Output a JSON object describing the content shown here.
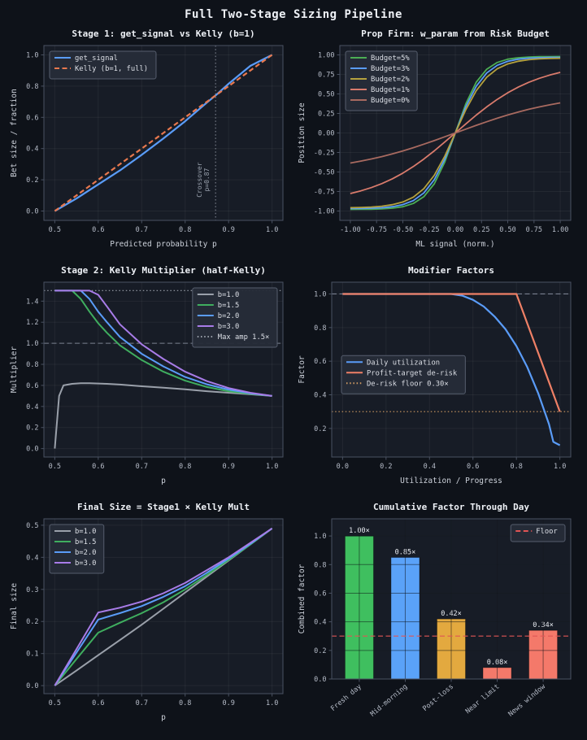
{
  "page": {
    "title": "Full Two-Stage Sizing Pipeline",
    "colors": {
      "figure_bg": "#0e1219",
      "axes_bg": "#171c26",
      "spine": "#4a5262",
      "grid": "rgba(255,255,255,0.055)",
      "tick_text": "#b6bcc8",
      "label_text": "#cdd2db",
      "title_text": "#eef1f6",
      "legend_bg": "#262c38",
      "legend_border": "#5a6272",
      "legend_text": "#dcdfe6",
      "annotation_text": "#9aa2ae"
    }
  },
  "chart_data": [
    {
      "type": "line",
      "title": "Stage 1: get_signal vs Kelly (b=1)",
      "xlabel": "Predicted probability p",
      "ylabel": "Bet size / fraction",
      "xlim": [
        0.475,
        1.025
      ],
      "ylim": [
        -0.06,
        1.06
      ],
      "xticks": [
        0.5,
        0.6,
        0.7,
        0.8,
        0.9,
        1.0
      ],
      "xtick_labels": [
        "0.5",
        "0.6",
        "0.7",
        "0.8",
        "0.9",
        "1.0"
      ],
      "yticks": [
        0.0,
        0.2,
        0.4,
        0.6,
        0.8,
        1.0
      ],
      "ytick_labels": [
        "0.0",
        "0.2",
        "0.4",
        "0.6",
        "0.8",
        "1.0"
      ],
      "legend_pos": "top-left",
      "x": [
        0.5,
        0.55,
        0.6,
        0.65,
        0.7,
        0.75,
        0.8,
        0.85,
        0.87,
        0.9,
        0.95,
        1.0
      ],
      "series": [
        {
          "name": "get_signal",
          "color": "#5a9cf8",
          "dash": "solid",
          "width": 2.2,
          "y": [
            0,
            0.08,
            0.17,
            0.26,
            0.36,
            0.465,
            0.575,
            0.695,
            0.74,
            0.815,
            0.93,
            1.0
          ]
        },
        {
          "name": "Kelly (b=1, full)",
          "color": "#e8784e",
          "dash": "dashed",
          "width": 2.2,
          "y": [
            0,
            0.1,
            0.2,
            0.3,
            0.4,
            0.5,
            0.6,
            0.7,
            0.74,
            0.8,
            0.9,
            1.0
          ]
        }
      ],
      "vline": {
        "x": 0.87,
        "color": "#8a909c",
        "labels": [
          "Crossover",
          "p=0.87"
        ],
        "label_y": 0.2
      }
    },
    {
      "type": "line",
      "title": "Prop Firm: w_param from Risk Budget",
      "xlabel": "ML signal (norm.)",
      "ylabel": "Position size",
      "xlim": [
        -1.1,
        1.1
      ],
      "ylim": [
        -1.12,
        1.12
      ],
      "xticks": [
        -1,
        -0.75,
        -0.5,
        -0.25,
        0,
        0.25,
        0.5,
        0.75,
        1
      ],
      "xtick_labels": [
        "-1.00",
        "-0.75",
        "-0.50",
        "-0.25",
        "0.00",
        "0.25",
        "0.50",
        "0.75",
        "1.00"
      ],
      "yticks": [
        -1,
        -0.75,
        -0.5,
        -0.25,
        0,
        0.25,
        0.5,
        0.75,
        1
      ],
      "ytick_labels": [
        "-1.00",
        "-0.75",
        "-0.50",
        "-0.25",
        "0.00",
        "0.25",
        "0.50",
        "0.75",
        "1.00"
      ],
      "legend_pos": "top-left",
      "x": [
        -1,
        -0.9,
        -0.8,
        -0.7,
        -0.6,
        -0.5,
        -0.4,
        -0.3,
        -0.2,
        -0.1,
        0,
        0.1,
        0.2,
        0.3,
        0.4,
        0.5,
        0.6,
        0.7,
        0.8,
        0.9,
        1
      ],
      "series": [
        {
          "name": "Budget=5%",
          "color": "#4cae54",
          "dash": "solid",
          "width": 1.8,
          "y": [
            -0.979,
            -0.978,
            -0.977,
            -0.973,
            -0.964,
            -0.945,
            -0.903,
            -0.817,
            -0.651,
            -0.372,
            0,
            0.372,
            0.651,
            0.817,
            0.903,
            0.945,
            0.964,
            0.973,
            0.977,
            0.978,
            0.979
          ]
        },
        {
          "name": "Budget=3%",
          "color": "#5a9cf8",
          "dash": "solid",
          "width": 1.8,
          "y": [
            -0.968,
            -0.967,
            -0.964,
            -0.958,
            -0.945,
            -0.918,
            -0.867,
            -0.769,
            -0.598,
            -0.335,
            0,
            0.335,
            0.598,
            0.769,
            0.867,
            0.918,
            0.945,
            0.958,
            0.964,
            0.967,
            0.968
          ]
        },
        {
          "name": "Budget=2%",
          "color": "#b5a23e",
          "dash": "solid",
          "width": 1.8,
          "y": [
            -0.957,
            -0.954,
            -0.949,
            -0.939,
            -0.919,
            -0.885,
            -0.822,
            -0.715,
            -0.542,
            -0.297,
            0,
            0.297,
            0.542,
            0.715,
            0.822,
            0.885,
            0.919,
            0.939,
            0.949,
            0.954,
            0.957
          ]
        },
        {
          "name": "Budget=1%",
          "color": "#d97b6c",
          "dash": "solid",
          "width": 1.8,
          "y": [
            -0.776,
            -0.742,
            -0.7,
            -0.649,
            -0.588,
            -0.515,
            -0.43,
            -0.334,
            -0.229,
            -0.116,
            0,
            0.116,
            0.229,
            0.334,
            0.43,
            0.515,
            0.588,
            0.649,
            0.7,
            0.742,
            0.776
          ]
        },
        {
          "name": "Budget=0%",
          "color": "#a86a60",
          "dash": "solid",
          "width": 1.8,
          "y": [
            -0.385,
            -0.361,
            -0.333,
            -0.303,
            -0.268,
            -0.23,
            -0.189,
            -0.144,
            -0.098,
            -0.049,
            0,
            0.049,
            0.098,
            0.144,
            0.189,
            0.23,
            0.268,
            0.303,
            0.333,
            0.361,
            0.385
          ]
        }
      ]
    },
    {
      "type": "line",
      "title": "Stage 2: Kelly Multiplier (half-Kelly)",
      "xlabel": "p",
      "ylabel": "Multiplier",
      "xlim": [
        0.475,
        1.025
      ],
      "ylim": [
        -0.08,
        1.58
      ],
      "xticks": [
        0.5,
        0.6,
        0.7,
        0.8,
        0.9,
        1.0
      ],
      "xtick_labels": [
        "0.5",
        "0.6",
        "0.7",
        "0.8",
        "0.9",
        "1.0"
      ],
      "yticks": [
        0,
        0.2,
        0.4,
        0.6,
        0.8,
        1.0,
        1.2,
        1.4
      ],
      "ytick_labels": [
        "0.0",
        "0.2",
        "0.4",
        "0.6",
        "0.8",
        "1.0",
        "1.2",
        "1.4"
      ],
      "legend_pos": "top-right",
      "x": [
        0.5,
        0.51,
        0.52,
        0.54,
        0.56,
        0.58,
        0.6,
        0.62,
        0.65,
        0.7,
        0.75,
        0.8,
        0.85,
        0.9,
        0.95,
        1.0
      ],
      "series": [
        {
          "name": "b=1.0",
          "color": "#9aa0aa",
          "dash": "solid",
          "width": 2,
          "y": [
            0,
            0.5,
            0.6,
            0.615,
            0.62,
            0.62,
            0.618,
            0.615,
            0.608,
            0.592,
            0.578,
            0.562,
            0.545,
            0.53,
            0.515,
            0.5
          ]
        },
        {
          "name": "b=1.5",
          "color": "#3fae5f",
          "dash": "solid",
          "width": 2,
          "y": [
            1.5,
            1.5,
            1.5,
            1.5,
            1.42,
            1.3,
            1.19,
            1.1,
            0.98,
            0.84,
            0.73,
            0.645,
            0.585,
            0.545,
            0.52,
            0.5
          ]
        },
        {
          "name": "b=2.0",
          "color": "#5a9cf8",
          "dash": "solid",
          "width": 2,
          "y": [
            1.5,
            1.5,
            1.5,
            1.5,
            1.5,
            1.42,
            1.3,
            1.2,
            1.06,
            0.9,
            0.78,
            0.68,
            0.61,
            0.56,
            0.525,
            0.5
          ]
        },
        {
          "name": "b=3.0",
          "color": "#a87ce8",
          "dash": "solid",
          "width": 2,
          "y": [
            1.5,
            1.5,
            1.5,
            1.5,
            1.5,
            1.5,
            1.46,
            1.35,
            1.18,
            0.99,
            0.85,
            0.73,
            0.64,
            0.575,
            0.53,
            0.5
          ]
        }
      ],
      "hlines": [
        {
          "y": 1.5,
          "color": "#9aa0aa",
          "dash": "dotted",
          "name": "Max amp 1.5×"
        },
        {
          "y": 1.0,
          "color": "#7a8190",
          "dash": "dashed"
        }
      ]
    },
    {
      "type": "line",
      "title": "Modifier Factors",
      "xlabel": "Utilization / Progress",
      "ylabel": "Factor",
      "xlim": [
        -0.05,
        1.05
      ],
      "ylim": [
        0.03,
        1.07
      ],
      "xticks": [
        0,
        0.2,
        0.4,
        0.6,
        0.8,
        1.0
      ],
      "xtick_labels": [
        "0.0",
        "0.2",
        "0.4",
        "0.6",
        "0.8",
        "1.0"
      ],
      "yticks": [
        0.2,
        0.4,
        0.6,
        0.8,
        1.0
      ],
      "ytick_labels": [
        "0.2",
        "0.4",
        "0.6",
        "0.8",
        "1.0"
      ],
      "legend_pos": "mid-left",
      "x": [
        0,
        0.1,
        0.2,
        0.3,
        0.4,
        0.5,
        0.55,
        0.6,
        0.65,
        0.7,
        0.75,
        0.8,
        0.85,
        0.9,
        0.95,
        0.97,
        1.0
      ],
      "series": [
        {
          "name": "Daily utilization",
          "color": "#5a9cf8",
          "dash": "solid",
          "width": 2.2,
          "y": [
            1,
            1,
            1,
            1,
            1,
            1,
            0.99,
            0.965,
            0.925,
            0.865,
            0.79,
            0.69,
            0.565,
            0.41,
            0.225,
            0.12,
            0.1
          ]
        },
        {
          "name": "Profit-target de-risk",
          "color": "#ef8066",
          "dash": "solid",
          "width": 2.2,
          "y": [
            1,
            1,
            1,
            1,
            1,
            1,
            1,
            1,
            1,
            1,
            1,
            1,
            0.825,
            0.65,
            0.475,
            0.405,
            0.3
          ]
        }
      ],
      "hlines": [
        {
          "y": 1.0,
          "color": "#7a8190",
          "dash": "dashed"
        },
        {
          "y": 0.3,
          "color": "#cf9a62",
          "dash": "dotted",
          "name": "De-risk floor 0.30×"
        }
      ]
    },
    {
      "type": "line",
      "title": "Final Size = Stage1 × Kelly Mult",
      "xlabel": "p",
      "ylabel": "Final size",
      "xlim": [
        0.475,
        1.025
      ],
      "ylim": [
        -0.025,
        0.52
      ],
      "xticks": [
        0.5,
        0.6,
        0.7,
        0.8,
        0.9,
        1.0
      ],
      "xtick_labels": [
        "0.5",
        "0.6",
        "0.7",
        "0.8",
        "0.9",
        "1.0"
      ],
      "yticks": [
        0,
        0.1,
        0.2,
        0.3,
        0.4,
        0.5
      ],
      "ytick_labels": [
        "0.0",
        "0.1",
        "0.2",
        "0.3",
        "0.4",
        "0.5"
      ],
      "legend_pos": "top-left",
      "x": [
        0.5,
        0.55,
        0.6,
        0.65,
        0.7,
        0.75,
        0.8,
        0.85,
        0.9,
        0.95,
        1.0
      ],
      "series": [
        {
          "name": "b=1.0",
          "color": "#9aa0aa",
          "dash": "solid",
          "width": 2,
          "y": [
            0,
            0.047,
            0.095,
            0.142,
            0.19,
            0.24,
            0.29,
            0.34,
            0.39,
            0.44,
            0.49
          ]
        },
        {
          "name": "b=1.5",
          "color": "#3fae5f",
          "dash": "solid",
          "width": 2,
          "y": [
            0,
            0.083,
            0.165,
            0.196,
            0.226,
            0.26,
            0.3,
            0.345,
            0.392,
            0.44,
            0.49
          ]
        },
        {
          "name": "b=2.0",
          "color": "#5a9cf8",
          "dash": "solid",
          "width": 2,
          "y": [
            0,
            0.103,
            0.206,
            0.226,
            0.248,
            0.277,
            0.31,
            0.352,
            0.396,
            0.442,
            0.49
          ]
        },
        {
          "name": "b=3.0",
          "color": "#a87ce8",
          "dash": "solid",
          "width": 2,
          "y": [
            0,
            0.114,
            0.228,
            0.243,
            0.262,
            0.288,
            0.32,
            0.36,
            0.4,
            0.445,
            0.49
          ]
        }
      ]
    },
    {
      "type": "bar",
      "title": "Cumulative Factor Through Day",
      "ylabel": "Combined factor",
      "categories": [
        "Fresh day",
        "Mid-morning",
        "Post-loss",
        "Near limit",
        "News window"
      ],
      "values": [
        1.0,
        0.85,
        0.42,
        0.08,
        0.34
      ],
      "bar_labels": [
        "1.00×",
        "0.85×",
        "0.42×",
        "0.08×",
        "0.34×"
      ],
      "bar_colors": [
        "#3fbf5f",
        "#5aa2f8",
        "#e3a93f",
        "#f4796a",
        "#f4796a"
      ],
      "ylim": [
        0,
        1.12
      ],
      "yticks": [
        0,
        0.2,
        0.4,
        0.6,
        0.8,
        1.0
      ],
      "ytick_labels": [
        "0.0",
        "0.2",
        "0.4",
        "0.6",
        "0.8",
        "1.0"
      ],
      "floor": {
        "y": 0.3,
        "color": "#e05555",
        "dash": "dashed",
        "name": "Floor"
      },
      "legend_pos": "top-right",
      "rotate_xticks": 40
    }
  ]
}
